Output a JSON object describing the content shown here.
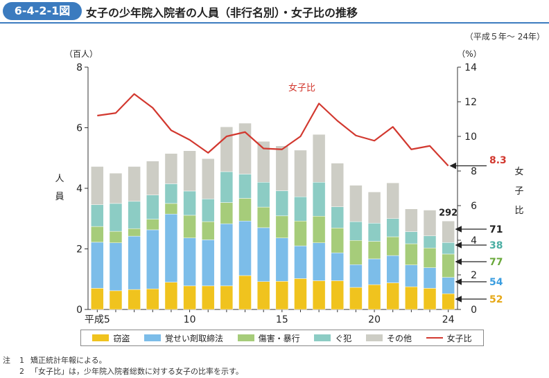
{
  "header": {
    "figure_number": "6-4-2-1図",
    "title": "女子の少年院入院者の人員（非行名別）・女子比の推移",
    "period": "（平成５年～ 24年）"
  },
  "chart_data": {
    "type": "bar",
    "stacked": true,
    "categories": [
      "5",
      "6",
      "7",
      "8",
      "9",
      "10",
      "11",
      "12",
      "13",
      "14",
      "15",
      "16",
      "17",
      "18",
      "19",
      "20",
      "21",
      "22",
      "23",
      "24"
    ],
    "x_tick_labels": [
      {
        "index": 0,
        "label": "平成5"
      },
      {
        "index": 5,
        "label": "10"
      },
      {
        "index": 10,
        "label": "15"
      },
      {
        "index": 15,
        "label": "20"
      },
      {
        "index": 19,
        "label": "24"
      }
    ],
    "left_axis": {
      "unit_label": "（百人）",
      "label": "人員",
      "ylim": [
        0,
        8
      ],
      "ticks": [
        0,
        2,
        4,
        6,
        8
      ]
    },
    "right_axis": {
      "unit_label": "（%）",
      "label": "女子比",
      "ylim": [
        0,
        14
      ],
      "ticks": [
        0,
        2,
        4,
        6,
        8,
        10,
        12,
        14
      ]
    },
    "series": [
      {
        "name": "窃盗",
        "color": "#f0c31e",
        "values": [
          0.7,
          0.62,
          0.66,
          0.68,
          0.9,
          0.78,
          0.78,
          0.78,
          1.12,
          0.92,
          0.93,
          1.02,
          0.95,
          0.95,
          0.73,
          0.82,
          0.88,
          0.75,
          0.7,
          0.52
        ]
      },
      {
        "name": "覚せい剤取締法",
        "color": "#7cbde9",
        "values": [
          1.52,
          1.58,
          1.76,
          1.95,
          2.25,
          1.58,
          1.52,
          2.05,
          1.8,
          1.78,
          1.43,
          1.08,
          1.25,
          0.92,
          0.75,
          0.85,
          0.9,
          0.72,
          0.68,
          0.54
        ]
      },
      {
        "name": "傷害・暴行",
        "color": "#a6cc7a",
        "values": [
          0.52,
          0.38,
          0.25,
          0.35,
          0.35,
          0.75,
          0.6,
          0.7,
          0.75,
          0.68,
          0.73,
          0.82,
          0.88,
          0.82,
          0.8,
          0.58,
          0.62,
          0.7,
          0.65,
          0.77
        ]
      },
      {
        "name": "ぐ犯",
        "color": "#8cccc4",
        "values": [
          0.72,
          0.92,
          0.9,
          0.8,
          0.65,
          0.8,
          0.75,
          1.02,
          0.8,
          0.82,
          0.83,
          0.8,
          1.12,
          0.7,
          0.62,
          0.6,
          0.6,
          0.4,
          0.4,
          0.38
        ]
      },
      {
        "name": "その他",
        "color": "#cdcdc5",
        "values": [
          1.26,
          1.0,
          1.15,
          1.12,
          1.0,
          1.33,
          1.33,
          1.48,
          1.68,
          1.35,
          1.48,
          1.54,
          1.58,
          1.44,
          1.2,
          1.03,
          1.18,
          0.75,
          0.85,
          0.71
        ]
      }
    ],
    "total_label": {
      "index": 19,
      "value": "292"
    },
    "line_series": {
      "name": "女子比",
      "color": "#d2382f",
      "values": [
        11.2,
        11.35,
        12.45,
        11.65,
        10.35,
        9.8,
        9.05,
        10.0,
        10.25,
        9.3,
        9.25,
        10.0,
        11.9,
        10.9,
        10.05,
        9.75,
        10.55,
        9.25,
        9.45,
        8.3
      ]
    },
    "line_annotation": {
      "text": "女子比",
      "index": 11
    },
    "callouts": [
      {
        "value": "8.3",
        "color": "#d2382f"
      },
      {
        "value": "71",
        "color": "#222222"
      },
      {
        "value": "38",
        "color": "#4aaea3"
      },
      {
        "value": "77",
        "color": "#69a83a"
      },
      {
        "value": "54",
        "color": "#3b9ee0"
      },
      {
        "value": "52",
        "color": "#e6a817"
      }
    ]
  },
  "legend": {
    "items": [
      {
        "label": "窃盗",
        "color": "#f0c31e"
      },
      {
        "label": "覚せい剤取締法",
        "color": "#7cbde9"
      },
      {
        "label": "傷害・暴行",
        "color": "#a6cc7a"
      },
      {
        "label": "ぐ犯",
        "color": "#8cccc4"
      },
      {
        "label": "その他",
        "color": "#cdcdc5"
      }
    ],
    "line_label": "女子比",
    "line_color": "#d2382f"
  },
  "notes": {
    "head": "注",
    "items": [
      {
        "num": "1",
        "text": "矯正統計年報による。"
      },
      {
        "num": "2",
        "text": "「女子比」は，少年院入院者総数に対する女子の比率を示す。"
      }
    ]
  }
}
